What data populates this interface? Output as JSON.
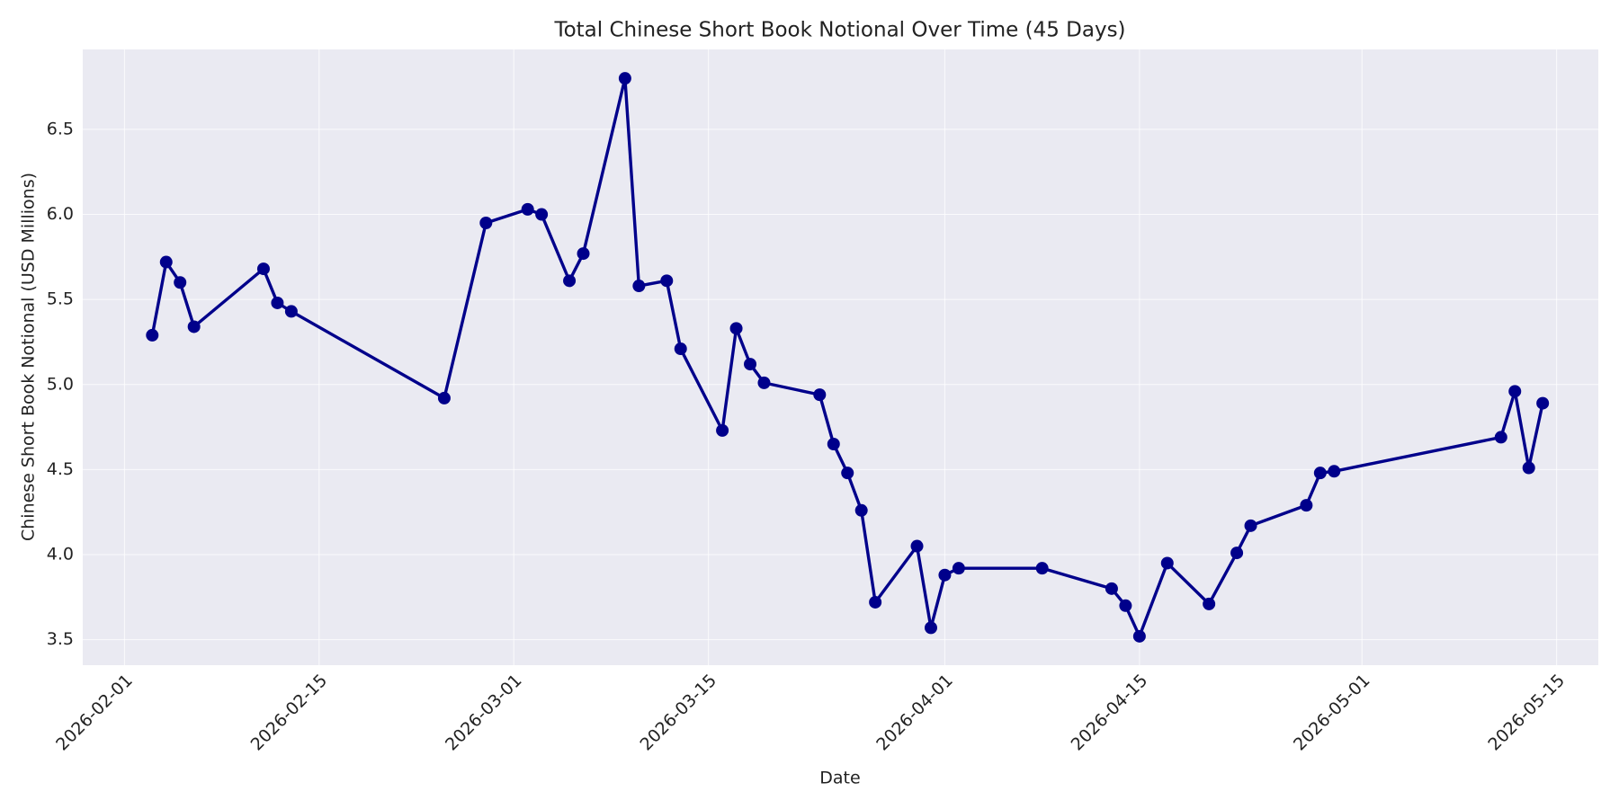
{
  "chart_data": {
    "type": "line",
    "title": "Total Chinese Short Book Notional Over Time (45 Days)",
    "x_label": "Date",
    "y_label": "Chinese Short Book Notional (USD Millions)",
    "x": [
      "2026-02-03",
      "2026-02-04",
      "2026-02-05",
      "2026-02-06",
      "2026-02-11",
      "2026-02-12",
      "2026-02-13",
      "2026-02-24",
      "2026-02-27",
      "2026-03-02",
      "2026-03-03",
      "2026-03-05",
      "2026-03-06",
      "2026-03-09",
      "2026-03-10",
      "2026-03-12",
      "2026-03-13",
      "2026-03-16",
      "2026-03-17",
      "2026-03-18",
      "2026-03-19",
      "2026-03-23",
      "2026-03-24",
      "2026-03-25",
      "2026-03-26",
      "2026-03-27",
      "2026-03-30",
      "2026-03-31",
      "2026-04-01",
      "2026-04-02",
      "2026-04-08",
      "2026-04-13",
      "2026-04-14",
      "2026-04-15",
      "2026-04-17",
      "2026-04-20",
      "2026-04-22",
      "2026-04-23",
      "2026-04-27",
      "2026-04-28",
      "2026-04-29",
      "2026-05-11",
      "2026-05-12",
      "2026-05-13",
      "2026-05-14"
    ],
    "series": [
      {
        "name": "Total Chinese Short Book Notional",
        "color": "#00008b",
        "values": [
          5.29,
          5.72,
          5.6,
          5.34,
          5.68,
          5.48,
          5.43,
          4.92,
          5.95,
          6.03,
          6.0,
          5.61,
          5.77,
          6.8,
          5.58,
          5.61,
          5.21,
          4.73,
          5.33,
          5.12,
          5.01,
          4.94,
          4.65,
          4.48,
          4.26,
          3.72,
          4.05,
          3.57,
          3.88,
          3.92,
          3.92,
          3.8,
          3.7,
          3.52,
          3.95,
          3.71,
          4.01,
          4.17,
          4.29,
          4.48,
          4.49,
          4.69,
          4.96,
          4.51,
          4.89
        ]
      }
    ],
    "xlim": [
      "2026-01-29",
      "2026-05-18"
    ],
    "xticks": [
      "2026-02-01",
      "2026-02-15",
      "2026-03-01",
      "2026-03-15",
      "2026-04-01",
      "2026-04-15",
      "2026-05-01",
      "2026-05-15"
    ],
    "ylim": [
      3.35,
      6.97
    ],
    "yticks": [
      3.5,
      {
        "value": 4,
        "label": "4.0"
      },
      4.5,
      {
        "value": 5,
        "label": "5.0"
      },
      5.5,
      {
        "value": 6,
        "label": "6.0"
      },
      6.5
    ],
    "grid": true
  }
}
